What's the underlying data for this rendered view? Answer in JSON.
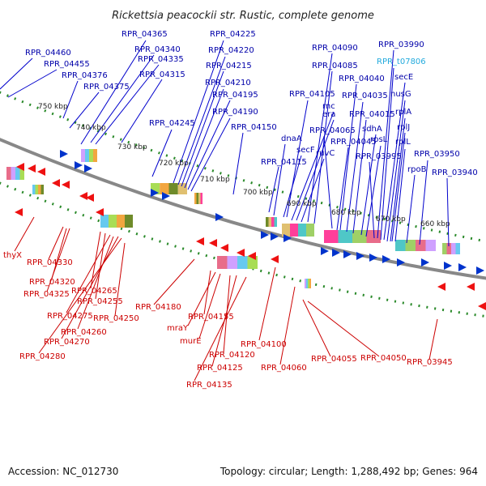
{
  "title": "Rickettsia peacockii str. Rustic, complete genome",
  "footer": {
    "accession": "Accession: NC_012730",
    "topology": "Topology: circular; Length: 1,288,492 bp; Genes: 964"
  },
  "kbp_ticks": [
    "750 kbp",
    "740 kbp",
    "730 kbp",
    "720 kbp",
    "710 kbp",
    "700 kbp",
    "690 kbp",
    "680 kbp",
    "670 kbp",
    "660 kbp"
  ],
  "top_labels": [
    "RPR_04460",
    "RPR_04455",
    "RPR_04376",
    "RPR_04375",
    "RPR_04365",
    "RPR_04340",
    "RPR_04335",
    "RPR_04315",
    "RPR_04245",
    "RPR_04225",
    "RPR_04220",
    "RPR_04215",
    "RPR_04210",
    "RPR_04195",
    "RPR_04190",
    "RPR_04150",
    "RPR_04115",
    "dnaA",
    "secF",
    "RPR_04105",
    "rnc",
    "era",
    "ruvC",
    "RPR_04090",
    "RPR_04085",
    "RPR_04065",
    "RPR_04045",
    "RPR_04040",
    "RPR_04035",
    "RPR_04015",
    "sdhA",
    "rpsL",
    "RPR_03995",
    "RPR_03990",
    "RPR_t07806",
    "secE",
    "nusG",
    "rplA",
    "rplJ",
    "rplL",
    "rpoB",
    "RPR_03950",
    "RPR_03940"
  ],
  "bottom_labels": [
    "thyX",
    "RPR_04330",
    "RPR_04320",
    "RPR_04325",
    "RPR_04265",
    "RPR_04255",
    "RPR_04275",
    "RPR_04260",
    "RPR_04270",
    "RPR_04280",
    "RPR_04250",
    "RPR_04180",
    "RPR_04155",
    "mraY",
    "murE",
    "RPR_04120",
    "RPR_04125",
    "RPR_04135",
    "RPR_04100",
    "RPR_04060",
    "RPR_04055",
    "RPR_04050",
    "RPR_03945"
  ]
}
